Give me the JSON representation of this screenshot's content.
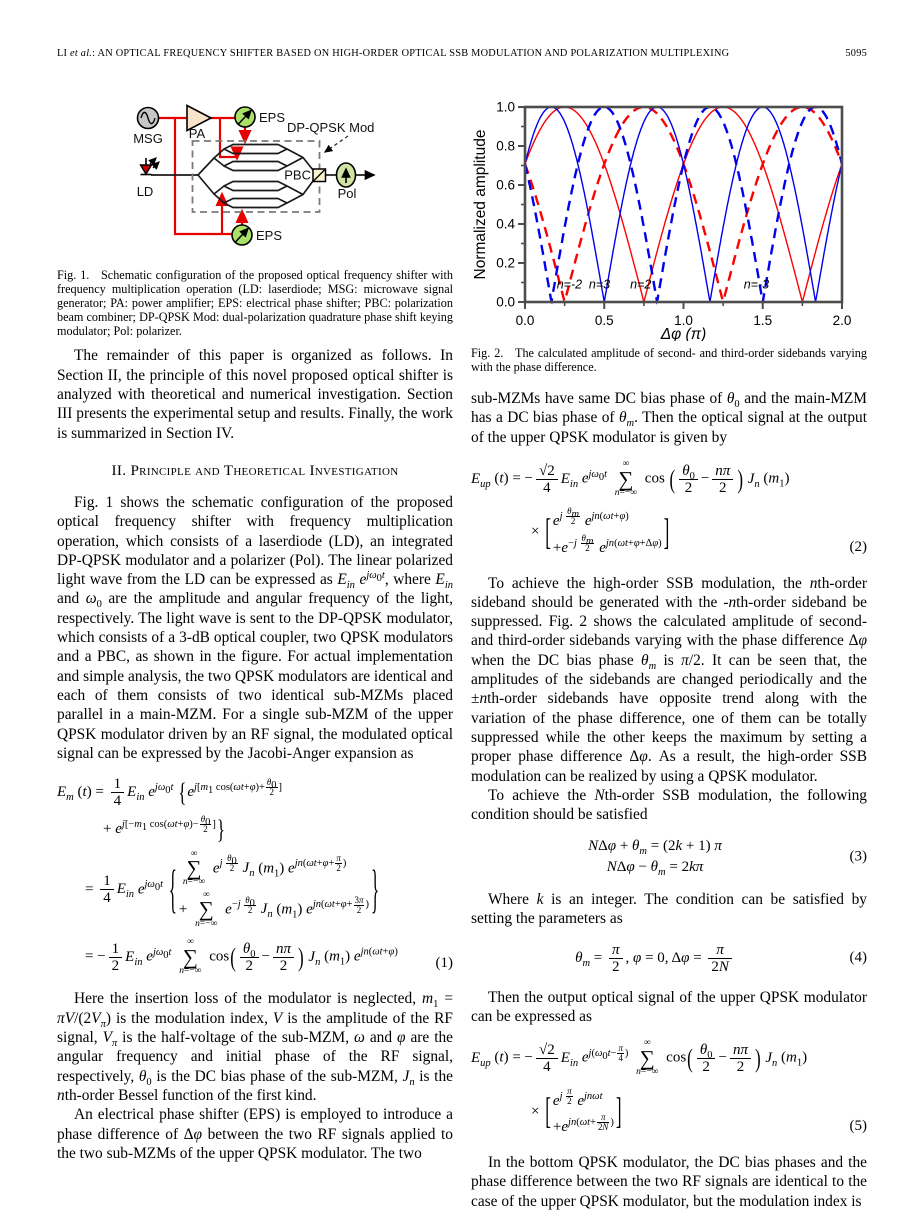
{
  "header": {
    "running_head_html": "LI <i>et al.</i>: AN OPTICAL FREQUENCY SHIFTER BASED ON HIGH-ORDER OPTICAL SSB MODULATION AND POLARIZATION MULTIPLEXING",
    "page_number": "5095"
  },
  "fig1": {
    "labels": {
      "msg": "MSG",
      "pa": "PA",
      "eps_top": "EPS",
      "eps_bottom": "EPS",
      "mod": "DP-QPSK Mod",
      "ld": "LD",
      "pbc": "PBC",
      "pol": "Pol"
    },
    "colors": {
      "wire": "#e60000",
      "eps_fill": "#a9e066",
      "msg_fill": "#c6c6c6",
      "pa_fill": "#f8e3cb",
      "ld_fill": "#cc0000",
      "pol_fill": "#cfe3a2",
      "pbc_fill": "#fdf3d3"
    },
    "caption_html": "Fig. 1.&nbsp;&nbsp;&nbsp;Schematic configuration of the proposed optical frequency shifter with frequency multiplication operation (LD: laserdiode; MSG: microwave signal generator; PA: power amplifier; EPS: electrical phase shifter; PBC: polarization beam combiner; DP-QPSK Mod: dual-polarization quadrature phase shift keying modulator; Pol: polarizer."
  },
  "fig2": {
    "caption_html": "Fig. 2.&nbsp;&nbsp;&nbsp;The calculated amplitude of second- and third-order sidebands varying with the phase difference."
  },
  "chart_data": {
    "type": "line",
    "title": "",
    "xlabel": "Δφ (π)",
    "ylabel": "Normalized amplitude",
    "xlim": [
      0,
      2
    ],
    "ylim": [
      0,
      1
    ],
    "xticks": [
      0.0,
      0.5,
      1.0,
      1.5,
      2.0
    ],
    "xminor_step": 0.25,
    "yticks": [
      0.0,
      0.2,
      0.4,
      0.6,
      0.8,
      1.0
    ],
    "yminor_step": 0.1,
    "grid": false,
    "legend_position": "none",
    "formula": "amplitude_n(x) = |cos(pi/4 - n*pi*x/2)|, x in units of pi",
    "series": [
      {
        "name": "n=2",
        "n": 2,
        "color": "#ff0000",
        "style": "solid",
        "description": "second-order sideband, zeros at 0.75 and 1.75, peaks at 0.25 and 1.25"
      },
      {
        "name": "n=-2",
        "n": -2,
        "color": "#ff0000",
        "style": "dashed",
        "description": "minus second-order sideband, zeros at 0.25 and 1.25, peaks at 0.75 and 1.75"
      },
      {
        "name": "n=3",
        "n": 3,
        "color": "#0000ee",
        "style": "solid",
        "description": "third-order sideband, zeros at 0.5, 1.167, 1.833; peaks at 0.167, 0.833, 1.5"
      },
      {
        "name": "n=-3",
        "n": -3,
        "color": "#0000ee",
        "style": "dashed",
        "description": "minus third-order sideband, zeros at 0.167, 0.833, 1.5; peaks at 0.5, 1.167, 1.833"
      }
    ],
    "value_at_x0": 0.707,
    "annotations": [
      {
        "text": "n=-2",
        "x": 0.28,
        "y": 0.07
      },
      {
        "text": "n=3",
        "x": 0.47,
        "y": 0.07
      },
      {
        "text": "n=2",
        "x": 0.73,
        "y": 0.07
      },
      {
        "text": "n=-3",
        "x": 1.46,
        "y": 0.07
      }
    ]
  },
  "content": {
    "p1_html": "The remainder of this paper is organized as follows. In Section II, the principle of this novel proposed optical shifter is analyzed with theoretical and numerical investigation. Section III presents the experimental setup and results. Finally, the work is summarized in Section IV.",
    "sec2_heading": "II. Principle and Theoretical Investigation",
    "p2_html": "Fig. 1 shows the schematic configuration of the proposed optical frequency shifter with frequency multiplication operation, which consists of a laserdiode (LD), an integrated DP-QPSK modulator and a polarizer (Pol). The linear polarized light wave from the LD can be expressed as <i>E<sub>in</sub></i> <i>e</i><sup><i>jω</i><sub>0</sub><i>t</i></sup>, where <i>E<sub>in</sub></i> and <i>ω</i><sub>0</sub> are the amplitude and angular frequency of the light, respectively. The light wave is sent to the DP-QPSK modulator, which consists of a 3-dB optical coupler, two QPSK modulators and a PBC, as shown in the figure. For actual implementation and simple analysis, the two QPSK modulators are identical and each of them consists of two identical sub-MZMs placed parallel in a main-MZM. For a single sub-MZM of the upper QPSK modulator driven by an RF signal, the modulated optical signal can be expressed by the Jacobi-Anger expansion as",
    "eq1": {
      "r1": "<i>E<sub>m</sub></i> (<i>t</i>) = <span class='fr'><span>1</span><span class='de'>4</span></span><i>E<sub>in</sub></i> <i>e</i><sup><i>jω</i><sub>0</sub><i>t</i></sup> <span class='d1'>{</span><i>e</i><sup><i>j</i>[<i>m</i><sub>1</sub> cos(<i>ωt</i>+<i>φ</i>)+<span class='fx'><span><i>θ</i><sub>0</sub></span><span class='de'>2</span></span>]</sup>",
      "r2": "+ <i>e</i><sup><i>j</i>[−<i>m</i><sub>1</sub> cos(<i>ωt</i>+<i>φ</i>)−<span class='fx'><span><i>θ</i><sub>0</sub></span><span class='de'>2</span></span>]</sup><span class='d1'>}</span>",
      "r3": "= <span class='fr'><span>1</span><span class='de'>4</span></span><i>E<sub>in</sub></i> <i>e</i><sup><i>jω</i><sub>0</sub><i>t</i></sup> <span class='d2'>{</span><span class='stack'><span><span class='sum'><span class='l'>∞</span><span class='g'>∑</span><span class='l'><i>n</i>=−∞</span></span> <i>e</i><sup><i>j</i> <span class='fx'><span><i>θ</i><sub>0</sub></span><span class='de'>2</span></span></sup> <i>J<sub>n</sub></i> (<i>m</i><sub>1</sub>) <i>e</i><sup><i>jn</i>(<i>ωt</i>+<i>φ</i>+<span class='fx'><span><i>π</i></span><span class='de'>2</span></span>)</sup></span><span>+ <span class='sum'><span class='l'>∞</span><span class='g'>∑</span><span class='l'><i>n</i>=−∞</span></span> <i>e</i><sup>−<i>j</i> <span class='fx'><span><i>θ</i><sub>0</sub></span><span class='de'>2</span></span></sup> <i>J<sub>n</sub></i> (<i>m</i><sub>1</sub>) <i>e</i><sup><i>jn</i>(<i>ωt</i>+<i>φ</i>+<span class='fx'><span>3<i>π</i></span><span class='de'>2</span></span>)</sup></span></span><span class='d2'>}</span>",
      "r4": "= −<span class='fr'><span>1</span><span class='de'>2</span></span><i>E<sub>in</sub></i> <i>e</i><sup><i>jω</i><sub>0</sub><i>t</i></sup> <span class='sum'><span class='l'>∞</span><span class='g'>∑</span><span class='l'><i>n</i>=−∞</span></span> cos<span class='d1'>(</span><span class='fr'><span><i>θ</i><sub>0</sub></span><span class='de'>2</span></span>−<span class='fr'><span><i>nπ</i></span><span class='de'>2</span></span><span class='d1'>)</span> <i>J<sub>n</sub></i> (<i>m</i><sub>1</sub>) <i>e</i><sup><i>jn</i>(<i>ωt</i>+<i>φ</i>)</sup>",
      "num": "(1)"
    },
    "p3_html": "Here the insertion loss of the modulator is neglected, <i>m</i><sub>1</sub> = <i>πV</i>/(2<i>V<sub>π</sub></i>) is the modulation index, <i>V</i> is the amplitude of the RF signal, <i>V<sub>π</sub></i> is the half-voltage of the sub-MZM, <i>ω</i> and <i>φ</i> are the angular frequency and initial phase of the RF signal, respectively, <i>θ</i><sub>0</sub> is the DC bias phase of the sub-MZM, <i>J<sub>n</sub></i> is the <i>n</i>th-order Bessel function of the first kind.",
    "p4_html": "An electrical phase shifter (EPS) is employed to introduce a phase difference of Δ<i>φ</i> between the two RF signals applied to the two sub-MZMs of the upper QPSK modulator. The two",
    "p5_html": "sub-MZMs have same DC bias phase of <i>θ</i><sub>0</sub> and the main-MZM has a DC bias phase of <i>θ<sub>m</sub></i>. Then the optical signal at the output of the upper QPSK modulator is given by",
    "eq2": {
      "r1": "<i>E<sub>up</sub></i> (<i>t</i>) = −<span class='fr'><span>√2</span><span class='de'>4</span></span><i>E<sub>in</sub></i> <i>e</i><sup><i>jω</i><sub>0</sub><i>t</i></sup> <span class='sum'><span class='l'>∞</span><span class='g'>∑</span><span class='l'><i>n</i>=−∞</span></span> cos <span class='d1'>(</span><span class='fr'><span><i>θ</i><sub>0</sub></span><span class='de'>2</span></span>−<span class='fr'><span><i>nπ</i></span><span class='de'>2</span></span><span class='d1'>)</span> <i>J<sub>n</sub></i> (<i>m</i><sub>1</sub>)",
      "r2": "× <span class='d2s'>[</span><span class='stack'><span><i>e</i><sup><i>j</i> <span class='fx'><span><i>θ<sub>m</sub></i></span><span class='de'>2</span></span></sup> <i>e</i><sup><i>jn</i>(<i>ωt</i>+<i>φ</i>)</sup></span><span>+<i>e</i><sup>−<i>j</i> <span class='fx'><span><i>θ<sub>m</sub></i></span><span class='de'>2</span></span></sup> <i>e</i><sup><i>jn</i>(<i>ωt</i>+<i>φ</i>+Δ<i>φ</i>)</sup></span></span><span class='d2s'>]</span>",
      "num": "(2)"
    },
    "p6_html": "To achieve the high-order SSB modulation, the <i>n</i>th-order sideband should be generated with the -<i>n</i>th-order sideband be suppressed. Fig. 2 shows the calculated amplitude of second- and third-order sidebands varying with the phase difference Δ<i>φ</i> when the DC bias phase <i>θ<sub>m</sub></i> is <i>π</i>/2. It can be seen that, the amplitudes of the sidebands are changed periodically and the ±<i>n</i>th-order sidebands have opposite trend along with the variation of the phase difference, one of them can be totally suppressed while the other keeps the maximum by setting a proper phase difference Δ<i>φ</i>. As a result, the high-order SSB modulation can be realized by using a QPSK modulator.",
    "p7_html": "To achieve the <i>N</i>th-order SSB modulation, the following condition should be satisfied",
    "eq3": {
      "r1": "<i>N</i>Δ<i>φ</i> + <i>θ<sub>m</sub></i> = (2<i>k</i> + 1) <i>π</i>",
      "r2": "<i>N</i>Δ<i>φ</i> − <i>θ<sub>m</sub></i> = 2<i>kπ</i>",
      "num": "(3)"
    },
    "p8_html": "Where <i>k</i> is an integer. The condition can be satisfied by setting the parameters as",
    "eq4": {
      "r1": "<i>θ<sub>m</sub></i> = <span class='fr'><span><i>π</i></span><span class='de'>2</span></span>, <i>φ</i> = 0, Δ<i>φ</i> = <span class='fr'><span><i>π</i></span><span class='de'>2<i>N</i></span></span>",
      "num": "(4)"
    },
    "p9_html": "Then the output optical signal of the upper QPSK modulator can be expressed as",
    "eq5": {
      "r1": "<i>E<sub>up</sub></i> (<i>t</i>) = −<span class='fr'><span>√2</span><span class='de'>4</span></span><i>E<sub>in</sub></i> <i>e</i><sup><i>j</i>(<i>ω</i><sub>0</sub><i>t</i>−<span class='fx'><span><i>π</i></span><span class='de'>4</span></span>)</sup> <span class='sum'><span class='l'>∞</span><span class='g'>∑</span><span class='l'><i>n</i>=−∞</span></span> cos<span class='d1'>(</span><span class='fr'><span><i>θ</i><sub>0</sub></span><span class='de'>2</span></span>−<span class='fr'><span><i>nπ</i></span><span class='de'>2</span></span><span class='d1'>)</span> <i>J<sub>n</sub></i> (<i>m</i><sub>1</sub>)",
      "r2": "× <span class='d2s'>[</span><span class='stack'><span><i>e</i><sup><i>j</i> <span class='fx'><span><i>π</i></span><span class='de'>2</span></span></sup> <i>e</i><sup><i>jnωt</i></sup></span><span>+<i>e</i><sup><i>jn</i>(<i>ωt</i>+<span class='fx'><span><i>π</i></span><span class='de'>2<i>N</i></span></span>)</sup></span></span><span class='d2s'>]</span>",
      "num": "(5)"
    },
    "p10_html": "In the bottom QPSK modulator, the DC bias phases and the phase difference between the two RF signals are identical to the case of the upper QPSK modulator, but the modulation index is"
  }
}
